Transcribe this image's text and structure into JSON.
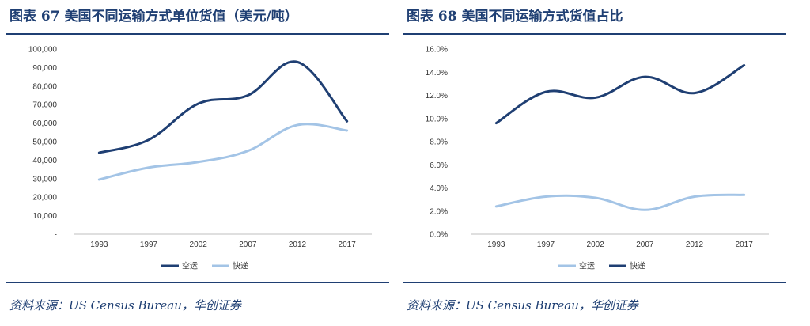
{
  "colors": {
    "dark": "#1f3f73",
    "light": "#a3c4e6",
    "axis": "#bfbfbf"
  },
  "chart_data": [
    {
      "type": "line",
      "title": "图表 67   美国不同运输方式单位货值（美元/吨）",
      "source": "资料来源：US Census Bureau，华创证券",
      "x": [
        1993,
        1997,
        2002,
        2007,
        2012,
        2017
      ],
      "y_ticks": [
        "-",
        "10,000",
        "20,000",
        "30,000",
        "40,000",
        "50,000",
        "60,000",
        "70,000",
        "80,000",
        "90,000",
        "100,000"
      ],
      "ylim": [
        0,
        100000
      ],
      "grid": false,
      "legend_position": "bottom",
      "series": [
        {
          "name": "空运",
          "color": "dark",
          "values": [
            44000,
            51000,
            70500,
            75000,
            93000,
            61000
          ]
        },
        {
          "name": "快递",
          "color": "light",
          "values": [
            29500,
            36000,
            39000,
            45000,
            59000,
            56000
          ]
        }
      ]
    },
    {
      "type": "line",
      "title": "图表 68   美国不同运输方式货值占比",
      "source": "资料来源：US Census Bureau，华创证券",
      "x": [
        1993,
        1997,
        2002,
        2007,
        2012,
        2017
      ],
      "y_ticks": [
        "0.0%",
        "2.0%",
        "4.0%",
        "6.0%",
        "8.0%",
        "10.0%",
        "12.0%",
        "14.0%",
        "16.0%"
      ],
      "ylim": [
        0,
        0.16
      ],
      "grid": false,
      "legend_position": "bottom",
      "series": [
        {
          "name": "空运",
          "color": "light",
          "values": [
            0.024,
            0.0325,
            0.0315,
            0.021,
            0.0325,
            0.034
          ]
        },
        {
          "name": "快递",
          "color": "dark",
          "values": [
            0.096,
            0.123,
            0.118,
            0.136,
            0.122,
            0.146
          ]
        }
      ]
    }
  ]
}
